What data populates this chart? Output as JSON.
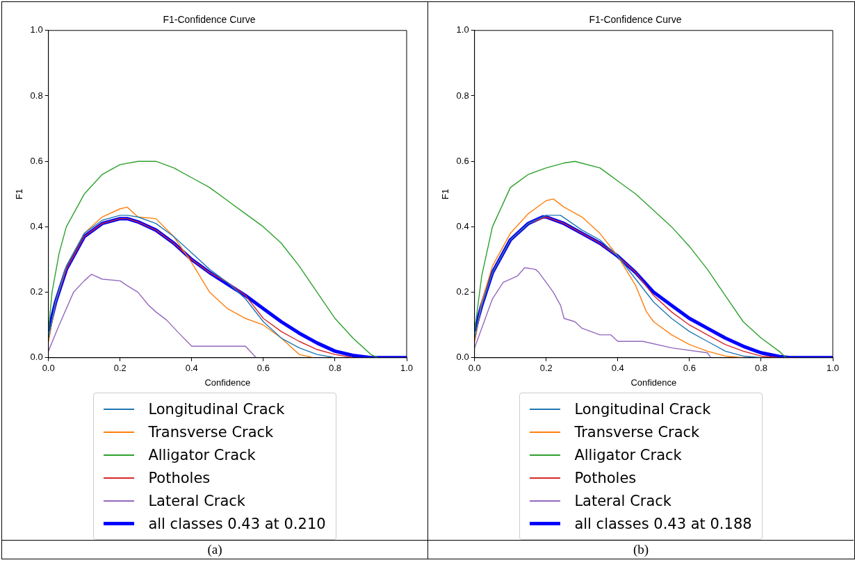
{
  "chart_data": [
    {
      "type": "line",
      "title": "F1-Confidence Curve",
      "xlabel": "Confidence",
      "ylabel": "F1",
      "xlim": [
        0,
        1
      ],
      "ylim": [
        0,
        1
      ],
      "xticks": [
        {
          "value": 0,
          "label": "0.0"
        },
        {
          "value": 0.2,
          "label": "0.2"
        },
        {
          "value": 0.4,
          "label": "0.4"
        },
        {
          "value": 0.6,
          "label": "0.6"
        },
        {
          "value": 0.8,
          "label": "0.8"
        },
        {
          "value": 1,
          "label": "1.0"
        }
      ],
      "yticks": [
        {
          "value": 0,
          "label": "0.0"
        },
        {
          "value": 0.2,
          "label": "0.2"
        },
        {
          "value": 0.4,
          "label": "0.4"
        },
        {
          "value": 0.6,
          "label": "0.6"
        },
        {
          "value": 0.8,
          "label": "0.8"
        },
        {
          "value": 1,
          "label": "1.0"
        }
      ],
      "grid": false,
      "legend": "bottom",
      "marker": "none",
      "line_style": "solid",
      "annotations": [
        "(a)"
      ],
      "series": [
        {
          "name": "Longitudinal Crack",
          "color": "#1f77b4",
          "x": [
            0,
            0.02,
            0.05,
            0.1,
            0.15,
            0.2,
            0.22,
            0.25,
            0.3,
            0.35,
            0.4,
            0.45,
            0.5,
            0.55,
            0.6,
            0.65,
            0.7,
            0.75,
            0.8
          ],
          "values": [
            0.06,
            0.17,
            0.28,
            0.38,
            0.42,
            0.435,
            0.435,
            0.43,
            0.41,
            0.37,
            0.32,
            0.27,
            0.23,
            0.18,
            0.11,
            0.06,
            0.03,
            0.01,
            0
          ]
        },
        {
          "name": "Transverse Crack",
          "color": "#ff7f0e",
          "x": [
            0,
            0.02,
            0.05,
            0.1,
            0.15,
            0.2,
            0.22,
            0.25,
            0.3,
            0.35,
            0.4,
            0.45,
            0.5,
            0.55,
            0.6,
            0.65,
            0.7,
            0.74
          ],
          "values": [
            0.05,
            0.17,
            0.28,
            0.38,
            0.43,
            0.455,
            0.46,
            0.43,
            0.425,
            0.37,
            0.29,
            0.2,
            0.15,
            0.12,
            0.1,
            0.06,
            0.01,
            0
          ]
        },
        {
          "name": "Alligator Crack",
          "color": "#2ca02c",
          "x": [
            0,
            0.01,
            0.03,
            0.05,
            0.1,
            0.15,
            0.2,
            0.25,
            0.3,
            0.35,
            0.4,
            0.45,
            0.5,
            0.55,
            0.6,
            0.65,
            0.7,
            0.75,
            0.8,
            0.85,
            0.9,
            0.92
          ],
          "values": [
            0.08,
            0.2,
            0.32,
            0.4,
            0.5,
            0.56,
            0.59,
            0.6,
            0.6,
            0.58,
            0.55,
            0.52,
            0.48,
            0.44,
            0.4,
            0.35,
            0.28,
            0.2,
            0.12,
            0.06,
            0.01,
            0
          ]
        },
        {
          "name": "Potholes",
          "color": "#d62728",
          "x": [
            0,
            0.02,
            0.05,
            0.1,
            0.15,
            0.2,
            0.22,
            0.25,
            0.3,
            0.35,
            0.4,
            0.45,
            0.5,
            0.55,
            0.6,
            0.65,
            0.7,
            0.75,
            0.8,
            0.85
          ],
          "values": [
            0.05,
            0.17,
            0.27,
            0.37,
            0.41,
            0.425,
            0.425,
            0.415,
            0.39,
            0.35,
            0.3,
            0.26,
            0.23,
            0.19,
            0.12,
            0.08,
            0.05,
            0.025,
            0.01,
            0
          ]
        },
        {
          "name": "Lateral Crack",
          "color": "#9467bd",
          "x": [
            0,
            0.03,
            0.07,
            0.1,
            0.12,
            0.15,
            0.2,
            0.22,
            0.25,
            0.28,
            0.3,
            0.33,
            0.36,
            0.4,
            0.5,
            0.55,
            0.58
          ],
          "values": [
            0.02,
            0.1,
            0.2,
            0.235,
            0.255,
            0.24,
            0.235,
            0.22,
            0.2,
            0.16,
            0.14,
            0.115,
            0.08,
            0.035,
            0.035,
            0.035,
            0
          ]
        },
        {
          "name": "all classes 0.43 at 0.210",
          "color": "#0000ff",
          "x": [
            0,
            0.02,
            0.05,
            0.1,
            0.15,
            0.2,
            0.22,
            0.25,
            0.3,
            0.35,
            0.4,
            0.45,
            0.5,
            0.55,
            0.6,
            0.65,
            0.7,
            0.75,
            0.8,
            0.85,
            0.9,
            1
          ],
          "values": [
            0.08,
            0.17,
            0.27,
            0.37,
            0.41,
            0.425,
            0.425,
            0.415,
            0.39,
            0.35,
            0.3,
            0.26,
            0.225,
            0.19,
            0.15,
            0.11,
            0.075,
            0.045,
            0.02,
            0.007,
            0,
            0
          ]
        }
      ]
    },
    {
      "type": "line",
      "title": "F1-Confidence Curve",
      "xlabel": "Confidence",
      "ylabel": "F1",
      "xlim": [
        0,
        1
      ],
      "ylim": [
        0,
        1
      ],
      "xticks": [
        {
          "value": 0,
          "label": "0.0"
        },
        {
          "value": 0.2,
          "label": "0.2"
        },
        {
          "value": 0.4,
          "label": "0.4"
        },
        {
          "value": 0.6,
          "label": "0.6"
        },
        {
          "value": 0.8,
          "label": "0.8"
        },
        {
          "value": 1,
          "label": "1.0"
        }
      ],
      "yticks": [
        {
          "value": 0,
          "label": "0.0"
        },
        {
          "value": 0.2,
          "label": "0.2"
        },
        {
          "value": 0.4,
          "label": "0.4"
        },
        {
          "value": 0.6,
          "label": "0.6"
        },
        {
          "value": 0.8,
          "label": "0.8"
        },
        {
          "value": 1,
          "label": "1.0"
        }
      ],
      "grid": false,
      "legend": "bottom",
      "marker": "none",
      "line_style": "solid",
      "annotations": [
        "(b)"
      ],
      "series": [
        {
          "name": "Longitudinal Crack",
          "color": "#1f77b4",
          "x": [
            0,
            0.02,
            0.05,
            0.1,
            0.15,
            0.2,
            0.24,
            0.3,
            0.35,
            0.4,
            0.45,
            0.5,
            0.55,
            0.6,
            0.65,
            0.7,
            0.75,
            0.8
          ],
          "values": [
            0.06,
            0.16,
            0.26,
            0.36,
            0.41,
            0.435,
            0.435,
            0.39,
            0.36,
            0.31,
            0.24,
            0.17,
            0.12,
            0.08,
            0.05,
            0.02,
            0.005,
            0
          ]
        },
        {
          "name": "Transverse Crack",
          "color": "#ff7f0e",
          "x": [
            0,
            0.02,
            0.05,
            0.1,
            0.15,
            0.2,
            0.22,
            0.25,
            0.3,
            0.35,
            0.4,
            0.45,
            0.48,
            0.5,
            0.55,
            0.6,
            0.65,
            0.7,
            0.75
          ],
          "values": [
            0.05,
            0.17,
            0.28,
            0.38,
            0.44,
            0.48,
            0.485,
            0.46,
            0.43,
            0.38,
            0.31,
            0.22,
            0.14,
            0.11,
            0.07,
            0.04,
            0.02,
            0.005,
            0
          ]
        },
        {
          "name": "Alligator Crack",
          "color": "#2ca02c",
          "x": [
            0,
            0.02,
            0.05,
            0.1,
            0.15,
            0.2,
            0.25,
            0.28,
            0.35,
            0.4,
            0.45,
            0.5,
            0.55,
            0.6,
            0.65,
            0.7,
            0.75,
            0.8,
            0.85,
            0.87
          ],
          "values": [
            0.08,
            0.25,
            0.4,
            0.52,
            0.56,
            0.58,
            0.595,
            0.6,
            0.58,
            0.54,
            0.5,
            0.45,
            0.4,
            0.34,
            0.27,
            0.19,
            0.11,
            0.06,
            0.02,
            0
          ]
        },
        {
          "name": "Potholes",
          "color": "#d62728",
          "x": [
            0,
            0.02,
            0.05,
            0.1,
            0.15,
            0.2,
            0.25,
            0.3,
            0.35,
            0.4,
            0.45,
            0.5,
            0.55,
            0.6,
            0.65,
            0.7,
            0.75,
            0.8,
            0.85
          ],
          "values": [
            0.05,
            0.16,
            0.26,
            0.36,
            0.41,
            0.43,
            0.41,
            0.38,
            0.35,
            0.31,
            0.26,
            0.19,
            0.14,
            0.1,
            0.07,
            0.04,
            0.02,
            0.005,
            0
          ]
        },
        {
          "name": "Lateral Crack",
          "color": "#9467bd",
          "x": [
            0,
            0.05,
            0.08,
            0.12,
            0.14,
            0.17,
            0.18,
            0.22,
            0.24,
            0.25,
            0.28,
            0.3,
            0.35,
            0.38,
            0.4,
            0.47,
            0.55,
            0.65,
            0.66
          ],
          "values": [
            0.03,
            0.18,
            0.23,
            0.25,
            0.275,
            0.27,
            0.26,
            0.2,
            0.16,
            0.12,
            0.11,
            0.09,
            0.07,
            0.07,
            0.05,
            0.05,
            0.03,
            0.015,
            0
          ]
        },
        {
          "name": "all classes 0.43 at 0.188",
          "color": "#0000ff",
          "x": [
            0,
            0.02,
            0.05,
            0.1,
            0.15,
            0.19,
            0.2,
            0.25,
            0.3,
            0.35,
            0.4,
            0.45,
            0.5,
            0.55,
            0.6,
            0.65,
            0.7,
            0.75,
            0.8,
            0.85,
            0.88,
            1
          ],
          "values": [
            0.08,
            0.16,
            0.26,
            0.36,
            0.41,
            0.43,
            0.43,
            0.41,
            0.38,
            0.35,
            0.31,
            0.26,
            0.2,
            0.16,
            0.12,
            0.09,
            0.06,
            0.035,
            0.015,
            0.004,
            0,
            0
          ]
        }
      ]
    }
  ]
}
